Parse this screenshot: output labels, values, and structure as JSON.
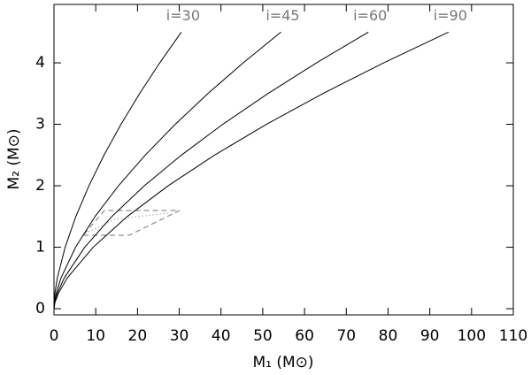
{
  "chart_data": {
    "type": "line",
    "x_label": "M₁ (M⊙)",
    "y_label": "M₂ (M⊙)",
    "xlim": [
      0,
      110
    ],
    "xticks": [
      0,
      10,
      20,
      30,
      40,
      50,
      60,
      70,
      80,
      90,
      100,
      110
    ],
    "ylim": [
      -0.1,
      4.95
    ],
    "yticks": [
      0,
      1,
      2,
      3,
      4
    ],
    "series": [
      {
        "name": "i=30",
        "color": "#000000",
        "x": [
          0,
          0.016,
          0.21,
          0.8,
          2.67,
          5.24,
          8.37,
          11.99,
          16.05,
          20.51,
          25.33,
          30.5
        ],
        "values": [
          0,
          0.1,
          0.25,
          0.5,
          1,
          1.5,
          2,
          2.5,
          3,
          3.5,
          4,
          4.5
        ]
      },
      {
        "name": "i=45",
        "color": "#000000",
        "x": [
          0,
          0.1,
          0.52,
          1.68,
          5.17,
          9.83,
          15.44,
          21.87,
          29.04,
          36.87,
          45.33,
          54.36
        ],
        "values": [
          0,
          0.1,
          0.25,
          0.5,
          1,
          1.5,
          2,
          2.5,
          3,
          3.5,
          4,
          4.5
        ]
      },
      {
        "name": "i=60",
        "color": "#000000",
        "x": [
          0,
          0.16,
          0.8,
          2.45,
          7.36,
          13.85,
          21.64,
          30.54,
          40.43,
          51.23,
          62.87,
          75.29
        ],
        "values": [
          0,
          0.1,
          0.25,
          0.5,
          1,
          1.5,
          2,
          2.5,
          3,
          3.5,
          4,
          4.5
        ]
      },
      {
        "name": "i=90",
        "color": "#000000",
        "x": [
          0,
          0.23,
          1.05,
          3.17,
          9.37,
          17.55,
          27.33,
          38.49,
          50.88,
          64.4,
          78.96,
          94.49
        ],
        "values": [
          0,
          0.1,
          0.25,
          0.5,
          1,
          1.5,
          2,
          2.5,
          3,
          3.5,
          4,
          4.5
        ]
      }
    ]
  }
}
